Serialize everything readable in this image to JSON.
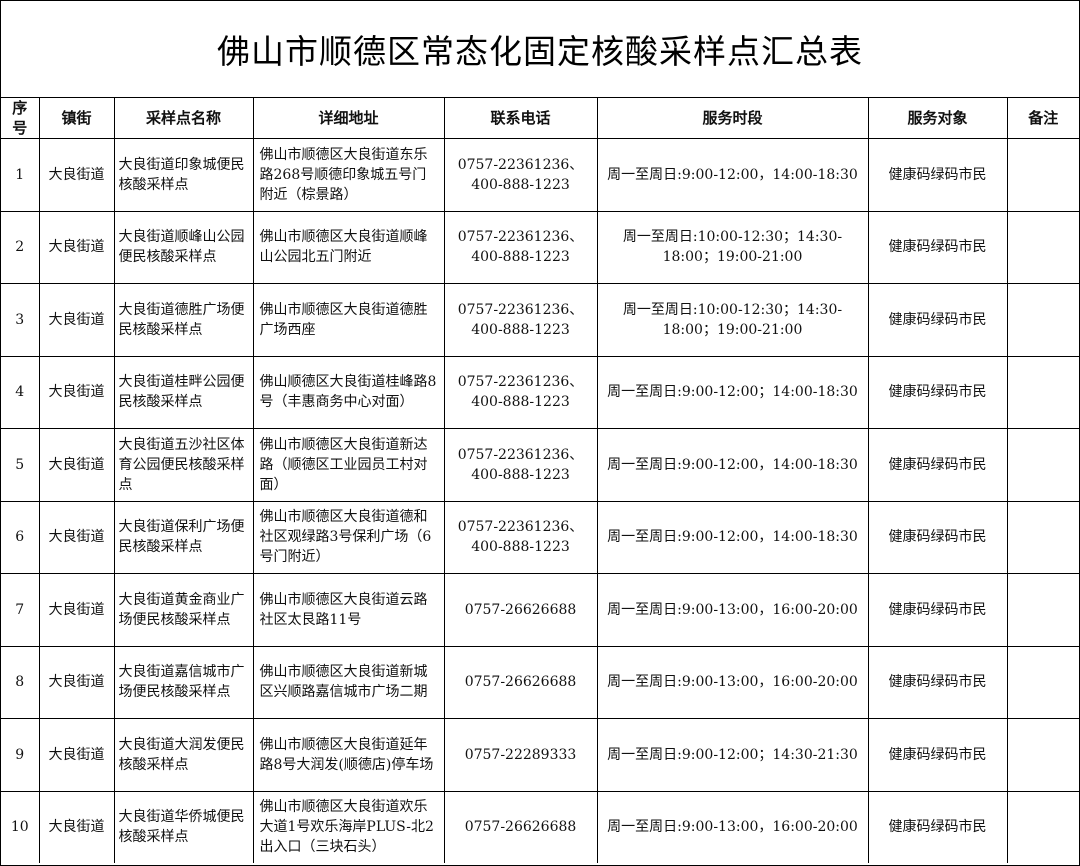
{
  "title": "佛山市顺德区常态化固定核酸采样点汇总表",
  "headers": {
    "no": "序号",
    "street": "镇街",
    "site": "采样点名称",
    "address": "详细地址",
    "phone": "联系电话",
    "hours": "服务时段",
    "target": "服务对象",
    "notes": "备注"
  },
  "rows": [
    {
      "no": "1",
      "street": "大良街道",
      "site": "大良街道印象城便民核酸采样点",
      "address": "佛山市顺德区大良街道东乐路268号顺德印象城五号门附近（棕景路）",
      "phone": "0757-22361236、400-888-1223",
      "hours": "周一至周日:9:00-12:00，14:00-18:30",
      "target": "健康码绿码市民",
      "notes": ""
    },
    {
      "no": "2",
      "street": "大良街道",
      "site": "大良街道顺峰山公园便民核酸采样点",
      "address": "佛山市顺德区大良街道顺峰山公园北五门附近",
      "phone": "0757-22361236、400-888-1223",
      "hours": "周一至周日:10:00-12:30；14:30-18:00；19:00-21:00",
      "target": "健康码绿码市民",
      "notes": ""
    },
    {
      "no": "3",
      "street": "大良街道",
      "site": "大良街道德胜广场便民核酸采样点",
      "address": "佛山市顺德区大良街道德胜广场西座",
      "phone": "0757-22361236、400-888-1223",
      "hours": "周一至周日:10:00-12:30；14:30-18:00；19:00-21:00",
      "target": "健康码绿码市民",
      "notes": ""
    },
    {
      "no": "4",
      "street": "大良街道",
      "site": "大良街道桂畔公园便民核酸采样点",
      "address": "佛山顺德区大良街道桂峰路8号（丰惠商务中心对面）",
      "phone": "0757-22361236、400-888-1223",
      "hours": "周一至周日:9:00-12:00；14:00-18:30",
      "target": "健康码绿码市民",
      "notes": ""
    },
    {
      "no": "5",
      "street": "大良街道",
      "site": "大良街道五沙社区体育公园便民核酸采样点",
      "address": "佛山市顺德区大良街道新达路（顺德区工业园员工村对面）",
      "phone": "0757-22361236、400-888-1223",
      "hours": "周一至周日:9:00-12:00，14:00-18:30",
      "target": "健康码绿码市民",
      "notes": ""
    },
    {
      "no": "6",
      "street": "大良街道",
      "site": "大良街道保利广场便民核酸采样点",
      "address": "佛山市顺德区大良街道德和社区观绿路3号保利广场（6号门附近）",
      "phone": "0757-22361236、400-888-1223",
      "hours": "周一至周日:9:00-12:00，14:00-18:30",
      "target": "健康码绿码市民",
      "notes": ""
    },
    {
      "no": "7",
      "street": "大良街道",
      "site": "大良街道黄金商业广场便民核酸采样点",
      "address": "佛山市顺德区大良街道云路社区太艮路11号",
      "phone": "0757-26626688",
      "hours": "周一至周日:9:00-13:00，16:00-20:00",
      "target": "健康码绿码市民",
      "notes": ""
    },
    {
      "no": "8",
      "street": "大良街道",
      "site": "大良街道嘉信城市广场便民核酸采样点",
      "address": "佛山市顺德区大良街道新城区兴顺路嘉信城市广场二期",
      "phone": "0757-26626688",
      "hours": "周一至周日:9:00-13:00，16:00-20:00",
      "target": "健康码绿码市民",
      "notes": ""
    },
    {
      "no": "9",
      "street": "大良街道",
      "site": "大良街道大润发便民核酸采样点",
      "address": "佛山市顺德区大良街道延年路8号大润发(顺德店)停车场",
      "phone": "0757-22289333",
      "hours": "周一至周日:9:00-12:00；14:30-21:30",
      "target": "健康码绿码市民",
      "notes": ""
    },
    {
      "no": "10",
      "street": "大良街道",
      "site": "大良街道华侨城便民核酸采样点",
      "address": "佛山市顺德区大良街道欢乐大道1号欢乐海岸PLUS-北2出入口（三块石头）",
      "phone": "0757-26626688",
      "hours": "周一至周日:9:00-13:00，16:00-20:00",
      "target": "健康码绿码市民",
      "notes": ""
    }
  ]
}
